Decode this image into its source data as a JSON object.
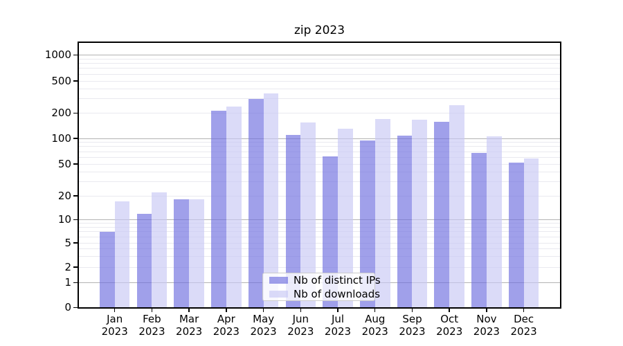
{
  "title": "zip 2023",
  "chart_data": {
    "type": "bar",
    "title": "zip 2023",
    "xlabel": "",
    "ylabel": "",
    "categories": [
      "Jan 2023",
      "Feb 2023",
      "Mar 2023",
      "Apr 2023",
      "May 2023",
      "Jun 2023",
      "Jul 2023",
      "Aug 2023",
      "Sep 2023",
      "Oct 2023",
      "Nov 2023",
      "Dec 2023"
    ],
    "series": [
      {
        "name": "Nb of distinct IPs",
        "color": "#6d6ddf",
        "values": [
          7,
          12,
          18,
          215,
          300,
          110,
          62,
          95,
          108,
          157,
          67,
          52
        ]
      },
      {
        "name": "Nb of downloads",
        "color": "#c8c8f4",
        "values": [
          17,
          22,
          18,
          240,
          350,
          155,
          130,
          170,
          165,
          250,
          105,
          58
        ]
      }
    ],
    "yscale": "symlog",
    "yticks": [
      0,
      1,
      2,
      5,
      10,
      20,
      50,
      100,
      200,
      500,
      1000
    ],
    "ylim": [
      0,
      1500
    ],
    "grid": true,
    "legend_position": "lower center"
  },
  "colors": {
    "ips_bar_rendered": "#9d9dea",
    "downloads_bar_rendered": "#dbdbf8",
    "grid_major": "#b3b3b3",
    "grid_minor": "#e9e9ef",
    "spine": "#000000",
    "legend_border": "#cbcbcb"
  }
}
